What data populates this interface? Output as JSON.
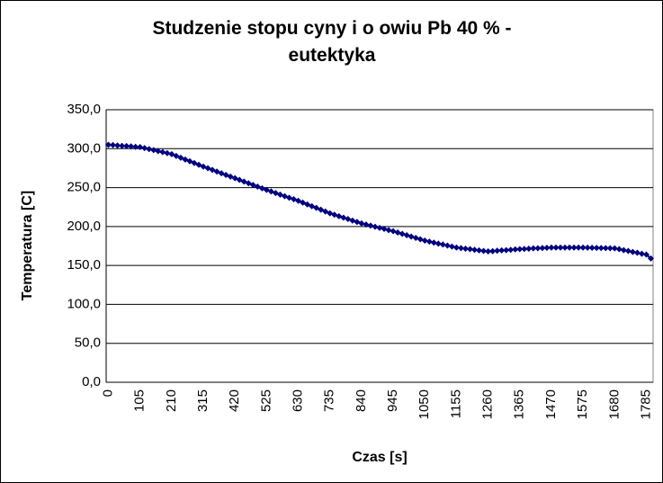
{
  "chart_data": {
    "type": "line",
    "title": "Studzenie stopu cyny i o owiu Pb 40 % - eutektyka",
    "x_label": "Czas [s]",
    "y_label": "Temperatura [C]",
    "categories": [
      0,
      null,
      null,
      null,
      null,
      null,
      null,
      105,
      null,
      null,
      null,
      null,
      null,
      null,
      210,
      null,
      null,
      null,
      null,
      null,
      null,
      315,
      null,
      null,
      null,
      null,
      null,
      null,
      420,
      null,
      null,
      null,
      null,
      null,
      null,
      525,
      null,
      null,
      null,
      null,
      null,
      null,
      630,
      null,
      null,
      null,
      null,
      null,
      null,
      735,
      null,
      null,
      null,
      null,
      null,
      null,
      840,
      null,
      null,
      null,
      null,
      null,
      null,
      945,
      null,
      null,
      null,
      null,
      null,
      null,
      1050,
      null,
      null,
      null,
      null,
      null,
      null,
      1155,
      null,
      null,
      null,
      null,
      null,
      null,
      1260,
      null,
      null,
      null,
      null,
      null,
      null,
      1365,
      null,
      null,
      null,
      null,
      null,
      null,
      1470,
      null,
      null,
      null,
      null,
      null,
      null,
      1575,
      null,
      null,
      null,
      null,
      null,
      null,
      1680,
      null,
      null,
      null,
      null,
      null,
      null,
      1785,
      null
    ],
    "series": [
      {
        "color": "#000080",
        "values": [
          305,
          304.6,
          304.1,
          303.7,
          303.3,
          302.9,
          302.4,
          302,
          300.7,
          299.4,
          298.1,
          296.9,
          295.6,
          294.3,
          293,
          290.7,
          288.4,
          286.1,
          283.9,
          281.6,
          279.3,
          277,
          274.9,
          272.7,
          270.6,
          268.4,
          266.3,
          264.1,
          262,
          259.9,
          257.7,
          255.6,
          253.4,
          251.3,
          249.1,
          247,
          245,
          243,
          241,
          239,
          237,
          235,
          233,
          230.7,
          228.4,
          226.1,
          223.9,
          221.6,
          219.3,
          217,
          215.1,
          213.3,
          211.4,
          209.6,
          207.7,
          205.9,
          204,
          202.6,
          201.1,
          199.7,
          198.3,
          196.9,
          195.4,
          194,
          192.3,
          190.6,
          188.9,
          187.1,
          185.4,
          183.7,
          182,
          180.7,
          179.4,
          178.1,
          176.9,
          175.6,
          174.3,
          173,
          172.3,
          171.6,
          170.9,
          170.1,
          169.4,
          168.7,
          168,
          168.4,
          168.9,
          169.3,
          169.7,
          170.1,
          170.6,
          171,
          171.3,
          171.6,
          171.9,
          172.1,
          172.4,
          172.7,
          173,
          173,
          173,
          173,
          173,
          173,
          173,
          173,
          172.9,
          172.7,
          172.6,
          172.4,
          172.3,
          172.1,
          172,
          170.9,
          169.7,
          168.6,
          167.4,
          166.3,
          165.1,
          164,
          159
        ]
      }
    ],
    "ylim": [
      0,
      350
    ],
    "yticks": [
      {
        "value": 0,
        "label": "0,0"
      },
      {
        "value": 50,
        "label": "50,0"
      },
      {
        "value": 100,
        "label": "100,0"
      },
      {
        "value": 150,
        "label": "150,0"
      },
      {
        "value": 200,
        "label": "200,0"
      },
      {
        "value": 250,
        "label": "250,0"
      },
      {
        "value": 300,
        "label": "300,0"
      },
      {
        "value": 350,
        "label": "350,0"
      }
    ],
    "grid": true
  }
}
